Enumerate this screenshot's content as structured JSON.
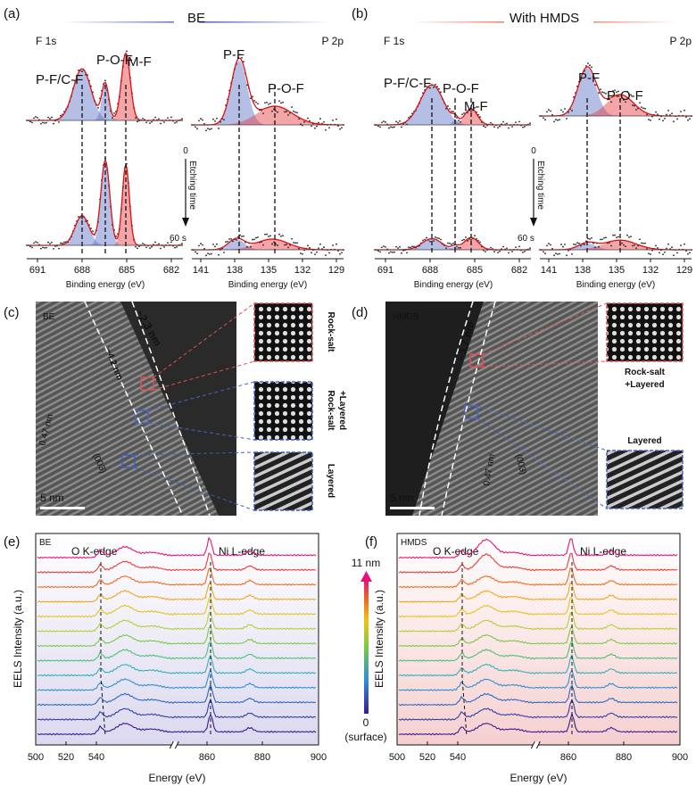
{
  "panels": [
    {
      "label": "(a)",
      "header": "BE",
      "spectra": [
        {
          "title": "F 1s",
          "peaks": [
            "P-F/C-F",
            "P-O-F",
            "M-F"
          ],
          "xticks": [
            "691",
            "688",
            "685",
            "682"
          ],
          "xlabel": "Binding energy (eV)"
        },
        {
          "title": "P 2p",
          "peaks": [
            "P-F",
            "P-O-F"
          ],
          "xticks": [
            "141",
            "138",
            "135",
            "132",
            "129"
          ],
          "xlabel": "Binding energy (eV)"
        }
      ],
      "etch": {
        "start": "0",
        "label": "Etching time",
        "end": "60 s"
      }
    },
    {
      "label": "(b)",
      "header": "With HMDS",
      "spectra": [
        {
          "title": "F 1s",
          "peaks": [
            "P-F/C-F",
            "P-O-F",
            "M-F"
          ],
          "xticks": [
            "691",
            "688",
            "685",
            "682"
          ],
          "xlabel": "Binding energy (eV)"
        },
        {
          "title": "P 2p",
          "peaks": [
            "P-F",
            "P-O-F"
          ],
          "xticks": [
            "141",
            "138",
            "135",
            "132",
            "129"
          ],
          "xlabel": "Binding energy (eV)"
        }
      ],
      "etch": {
        "start": "0",
        "label": "Etching time",
        "end": "60 s"
      }
    },
    {
      "label": "(c)",
      "sample": "BE",
      "thickness": [
        "~2.3 nm",
        "~4.2 nm"
      ],
      "spacing": "0.47 nm",
      "plane": "(003)",
      "scale": "5 nm",
      "insets": [
        [
          "Rock-salt"
        ],
        [
          "Rock-salt",
          "+Layered"
        ],
        [
          "Layered"
        ]
      ]
    },
    {
      "label": "(d)",
      "sample": "HMDS",
      "thickness": [
        "~3.7 nm"
      ],
      "spacing": "0.47 nm",
      "plane": "(003)",
      "scale": "5 nm",
      "insets": [
        [
          "Rock-salt",
          "+Layered"
        ],
        [
          "Layered"
        ]
      ]
    },
    {
      "label": "(e)",
      "sample": "BE",
      "edges": [
        "O K-edge",
        "Ni L-edge"
      ],
      "ylabel": "EELS Intensity (a.u.)",
      "xlabel": "Energy (eV)",
      "xticks": [
        "500",
        "520",
        "540",
        "860",
        "880",
        "900"
      ]
    },
    {
      "label": "(f)",
      "sample": "HMDS",
      "edges": [
        "O K-edge",
        "Ni L-edge"
      ],
      "ylabel": "EELS Intensity (a.u.)",
      "xlabel": "Energy (eV)",
      "xticks": [
        "500",
        "520",
        "540",
        "860",
        "880",
        "900"
      ]
    }
  ],
  "colorbar": {
    "top": "11 nm",
    "bottom": [
      "0",
      "(surface)"
    ]
  }
}
